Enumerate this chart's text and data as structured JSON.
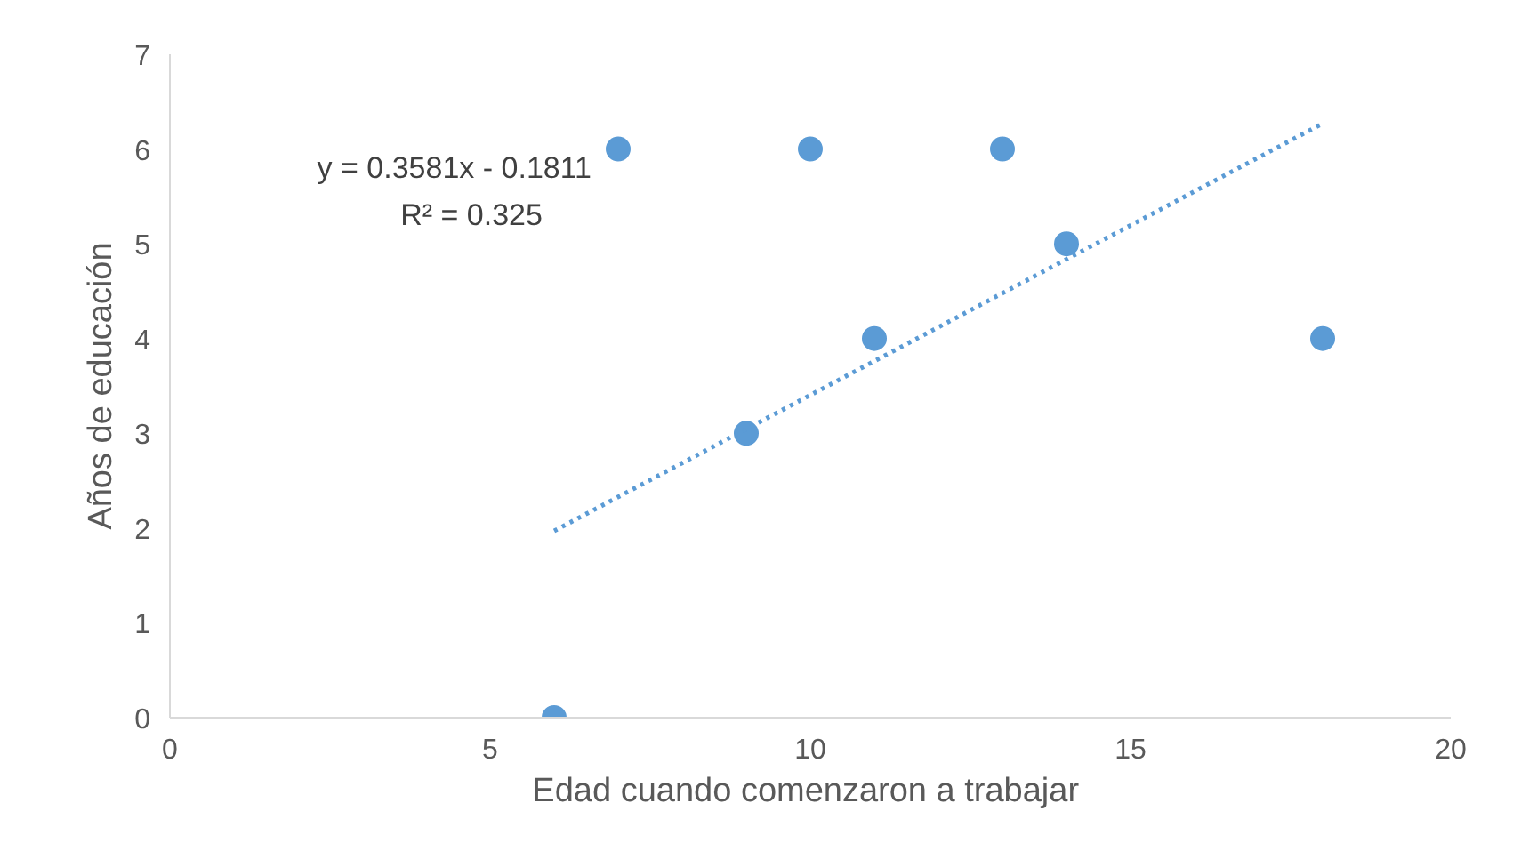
{
  "chart_data": {
    "type": "scatter",
    "xlabel": "Edad cuando comenzaron a  trabajar",
    "ylabel": "Años de educación",
    "x": [
      6,
      7,
      9,
      10,
      11,
      13,
      14,
      18
    ],
    "series": [
      {
        "color": "#5b9bd5",
        "marker": "circle",
        "values": [
          0,
          6,
          3,
          6,
          4,
          6,
          5,
          4
        ]
      },
      {
        "type": "line",
        "color": "#5b9bd5",
        "line_style": "dotted",
        "x": [
          6,
          18
        ],
        "values": [
          1.97,
          6.27
        ]
      }
    ],
    "annotations": [
      "y = 0.3581x - 0.1811",
      "R² = 0.325"
    ],
    "xlim": [
      0,
      20
    ],
    "xticks": [
      0,
      5,
      10,
      15,
      20
    ],
    "ylim": [
      0,
      7
    ],
    "yticks": [
      0,
      1,
      2,
      3,
      4,
      5,
      6,
      7
    ],
    "grid": false
  }
}
